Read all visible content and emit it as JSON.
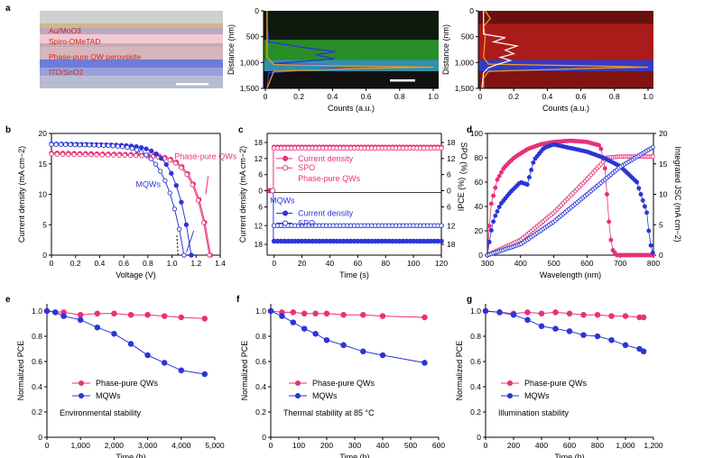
{
  "colors": {
    "pink": "#e8317a",
    "blue": "#2b35d6",
    "orange": "#f59a23",
    "green": "#2fbf2f",
    "red": "#d81b1b"
  },
  "chart_data": [
    {
      "panel": "a",
      "type": "image",
      "subtype": "cross-section micrograph",
      "layers": [
        "Au/MoO3",
        "Spiro-OMeTAD",
        "Phase-pure QW perovskite",
        "ITO/SnO2"
      ]
    },
    {
      "panel": "a2",
      "type": "line",
      "subtype": "EDX depth profile",
      "xlabel": "Counts (a.u.)",
      "ylabel": "Distance (nm)",
      "xlim": [
        0,
        1.0
      ],
      "ylim": [
        1500,
        0
      ],
      "xticks": [
        "0",
        "0.2",
        "0.4",
        "0.6",
        "0.8",
        "1.0"
      ],
      "yticks": [
        "0",
        "500",
        "1,000",
        "1,500"
      ],
      "series": [
        {
          "name": "blue",
          "points": [
            [
              0.01,
              0
            ],
            [
              0.01,
              300
            ],
            [
              0.02,
              600
            ],
            [
              0.25,
              720
            ],
            [
              0.42,
              790
            ],
            [
              0.3,
              850
            ],
            [
              0.41,
              930
            ],
            [
              0.05,
              1020
            ],
            [
              0.45,
              1060
            ],
            [
              0.95,
              1090
            ],
            [
              0.4,
              1110
            ],
            [
              0.02,
              1200
            ],
            [
              0.01,
              1500
            ]
          ]
        },
        {
          "name": "orange",
          "points": [
            [
              0.01,
              0
            ],
            [
              0.01,
              900
            ],
            [
              0.05,
              1040
            ],
            [
              0.75,
              1080
            ],
            [
              1.0,
              1090
            ],
            [
              0.6,
              1110
            ],
            [
              0.05,
              1170
            ],
            [
              0.01,
              1500
            ]
          ]
        }
      ]
    },
    {
      "panel": "a3",
      "type": "line",
      "subtype": "EDX depth profile",
      "xlabel": "Counts (a.u.)",
      "ylabel": "Distance (nm)",
      "xlim": [
        0,
        1.0
      ],
      "ylim": [
        1500,
        0
      ],
      "xticks": [
        "0",
        "0.2",
        "0.4",
        "0.6",
        "0.8",
        "1.0"
      ],
      "yticks": [
        "0",
        "500",
        "1,000",
        "1,500"
      ],
      "series": [
        {
          "name": "orange",
          "points": [
            [
              0.03,
              0
            ],
            [
              0.06,
              150
            ],
            [
              0.02,
              300
            ],
            [
              0.03,
              500
            ],
            [
              0.02,
              900
            ],
            [
              0.05,
              1030
            ],
            [
              0.8,
              1075
            ],
            [
              1.0,
              1090
            ],
            [
              0.7,
              1110
            ],
            [
              0.05,
              1170
            ],
            [
              0.02,
              1300
            ],
            [
              0.02,
              1500
            ]
          ]
        },
        {
          "name": "white",
          "points": [
            [
              0.02,
              0
            ],
            [
              0.02,
              450
            ],
            [
              0.15,
              520
            ],
            [
              0.08,
              600
            ],
            [
              0.22,
              680
            ],
            [
              0.15,
              760
            ],
            [
              0.2,
              830
            ],
            [
              0.12,
              900
            ],
            [
              0.18,
              960
            ],
            [
              0.1,
              1040
            ],
            [
              0.05,
              1100
            ],
            [
              0.02,
              1200
            ],
            [
              0.01,
              1500
            ]
          ]
        }
      ]
    },
    {
      "panel": "b",
      "type": "line",
      "subtype": "J-V curves",
      "xlabel": "Voltage (V)",
      "ylabel": "Current density (mA cm−2)",
      "xlim": [
        0,
        1.4
      ],
      "ylim": [
        0,
        20
      ],
      "xticks": [
        "0",
        "0.2",
        "0.4",
        "0.6",
        "0.8",
        "1.0",
        "1.2",
        "1.4"
      ],
      "yticks": [
        "0",
        "5",
        "10",
        "15",
        "20"
      ],
      "legend_labels": [
        "Phase-pure QWs",
        "MQWs"
      ],
      "series": [
        {
          "name": "Phase-pure QWs forward",
          "style": "filled",
          "Voc": 1.32,
          "Jsc": 16.8
        },
        {
          "name": "Phase-pure QWs reverse",
          "style": "open",
          "Voc": 1.31,
          "Jsc": 16.6
        },
        {
          "name": "MQWs reverse",
          "style": "filled",
          "Voc": 1.16,
          "Jsc": 18.3
        },
        {
          "name": "MQWs forward",
          "style": "open",
          "Voc": 1.1,
          "Jsc": 18.2
        }
      ]
    },
    {
      "panel": "c",
      "type": "line",
      "subtype": "stabilized output",
      "xlabel": "Time (s)",
      "ylabel": "Current density (mA cm−2)",
      "ylabel_right": "SPO (%)",
      "xlim": [
        0,
        120
      ],
      "xticks": [
        "0",
        "20",
        "40",
        "60",
        "80",
        "100",
        "120"
      ],
      "yticks_top": [
        "0",
        "6",
        "12",
        "18"
      ],
      "yticks_bottom": [
        "6",
        "12",
        "18"
      ],
      "yticks_right_top": [
        "0",
        "6",
        "12",
        "18"
      ],
      "yticks_right_bottom": [
        "6",
        "12",
        "18"
      ],
      "group_labels": [
        "Phase-pure QWs",
        "MQWs"
      ],
      "legend_labels": [
        "Current density",
        "SPO"
      ],
      "series": [
        {
          "name": "Phase-pure QWs current density",
          "values_level": 16.2
        },
        {
          "name": "Phase-pure QWs SPO",
          "values_level": 15.8
        },
        {
          "name": "MQWs current density",
          "values_level": 17.0
        },
        {
          "name": "MQWs SPO",
          "values_level": 12.0
        }
      ]
    },
    {
      "panel": "d",
      "type": "line",
      "subtype": "EQE",
      "xlabel": "Wavelength (nm)",
      "ylabel": "IPCE (%)",
      "ylabel_right": "Integrated JSC (mA cm−2)",
      "xlim": [
        300,
        800
      ],
      "ylim": [
        0,
        100
      ],
      "ylim_right": [
        0,
        20
      ],
      "xticks": [
        "300",
        "400",
        "500",
        "600",
        "700",
        "800"
      ],
      "yticks": [
        "0",
        "20",
        "40",
        "60",
        "80",
        "100"
      ],
      "yticks_right": [
        "0",
        "5",
        "10",
        "15",
        "20"
      ],
      "series": [
        {
          "name": "Phase-pure QWs IPCE",
          "x": [
            300,
            310,
            330,
            350,
            380,
            420,
            460,
            500,
            550,
            600,
            640,
            655,
            665,
            675,
            690,
            720,
            800
          ],
          "y": [
            0,
            40,
            62,
            72,
            80,
            87,
            91,
            93,
            94,
            93,
            90,
            70,
            30,
            5,
            0,
            0,
            0
          ]
        },
        {
          "name": "Phase-pure QWs integrated JSC",
          "x": [
            300,
            400,
            500,
            600,
            660,
            700,
            800
          ],
          "y": [
            0,
            2.5,
            7,
            12.5,
            16,
            16.2,
            16.2
          ]
        },
        {
          "name": "MQWs IPCE",
          "x": [
            300,
            310,
            320,
            340,
            370,
            400,
            420,
            440,
            470,
            500,
            550,
            600,
            650,
            700,
            750,
            780,
            790,
            800
          ],
          "y": [
            0,
            18,
            30,
            42,
            52,
            60,
            58,
            78,
            88,
            91,
            88,
            85,
            80,
            73,
            60,
            35,
            10,
            0
          ]
        },
        {
          "name": "MQWs integrated JSC",
          "x": [
            300,
            400,
            500,
            600,
            700,
            800
          ],
          "y": [
            0,
            1.8,
            5.5,
            10,
            14.5,
            17.8
          ]
        }
      ]
    },
    {
      "panel": "e",
      "type": "line",
      "subtype": "stability",
      "xlabel": "Time (h)",
      "ylabel": "Normalized PCE",
      "annotation": "Environmental stability",
      "xlim": [
        0,
        5000
      ],
      "ylim": [
        0,
        1.0
      ],
      "xticks": [
        "0",
        "1,000",
        "2,000",
        "3,000",
        "4,000",
        "5,000"
      ],
      "yticks": [
        "0",
        "0.2",
        "0.4",
        "0.6",
        "0.8",
        "1.0"
      ],
      "series": [
        {
          "name": "Phase-pure QWs",
          "x": [
            0,
            500,
            1000,
            1500,
            2000,
            2500,
            3000,
            3500,
            4000,
            4700
          ],
          "y": [
            1.0,
            0.99,
            0.97,
            0.98,
            0.98,
            0.97,
            0.97,
            0.96,
            0.95,
            0.94
          ]
        },
        {
          "name": "MQWs",
          "x": [
            0,
            250,
            500,
            1000,
            1500,
            2000,
            2500,
            3000,
            3500,
            4000,
            4700
          ],
          "y": [
            1.0,
            0.99,
            0.96,
            0.93,
            0.87,
            0.82,
            0.74,
            0.65,
            0.59,
            0.53,
            0.5
          ]
        }
      ]
    },
    {
      "panel": "f",
      "type": "line",
      "subtype": "stability",
      "xlabel": "Time (h)",
      "ylabel": "Normalized PCE",
      "annotation": "Thermal stability at 85 °C",
      "xlim": [
        0,
        600
      ],
      "ylim": [
        0,
        1.0
      ],
      "xticks": [
        "0",
        "100",
        "200",
        "300",
        "400",
        "500",
        "600"
      ],
      "yticks": [
        "0",
        "0.2",
        "0.4",
        "0.6",
        "0.8",
        "1.0"
      ],
      "series": [
        {
          "name": "Phase-pure QWs",
          "x": [
            0,
            40,
            80,
            120,
            160,
            200,
            260,
            330,
            400,
            550
          ],
          "y": [
            1.0,
            0.99,
            0.99,
            0.98,
            0.98,
            0.98,
            0.97,
            0.97,
            0.96,
            0.95
          ]
        },
        {
          "name": "MQWs",
          "x": [
            0,
            40,
            80,
            120,
            160,
            200,
            260,
            330,
            400,
            550
          ],
          "y": [
            1.0,
            0.96,
            0.91,
            0.86,
            0.82,
            0.77,
            0.73,
            0.68,
            0.65,
            0.59
          ]
        }
      ]
    },
    {
      "panel": "g",
      "type": "line",
      "subtype": "stability",
      "xlabel": "Time (h)",
      "ylabel": "Normalized PCE",
      "annotation": "Illumination stability",
      "xlim": [
        0,
        1200
      ],
      "ylim": [
        0,
        1.0
      ],
      "xticks": [
        "0",
        "200",
        "400",
        "600",
        "800",
        "1,000",
        "1,200"
      ],
      "yticks": [
        "0",
        "0.2",
        "0.4",
        "0.6",
        "0.8",
        "1.0"
      ],
      "series": [
        {
          "name": "Phase-pure QWs",
          "x": [
            0,
            100,
            200,
            300,
            400,
            500,
            600,
            700,
            800,
            900,
            1000,
            1100,
            1130
          ],
          "y": [
            1.0,
            0.99,
            0.98,
            0.99,
            0.98,
            0.99,
            0.98,
            0.97,
            0.97,
            0.96,
            0.96,
            0.95,
            0.95
          ]
        },
        {
          "name": "MQWs",
          "x": [
            0,
            100,
            200,
            300,
            400,
            500,
            600,
            700,
            800,
            900,
            1000,
            1100,
            1130
          ],
          "y": [
            1.0,
            0.99,
            0.97,
            0.93,
            0.88,
            0.86,
            0.84,
            0.81,
            0.8,
            0.77,
            0.73,
            0.7,
            0.68
          ]
        }
      ]
    }
  ]
}
